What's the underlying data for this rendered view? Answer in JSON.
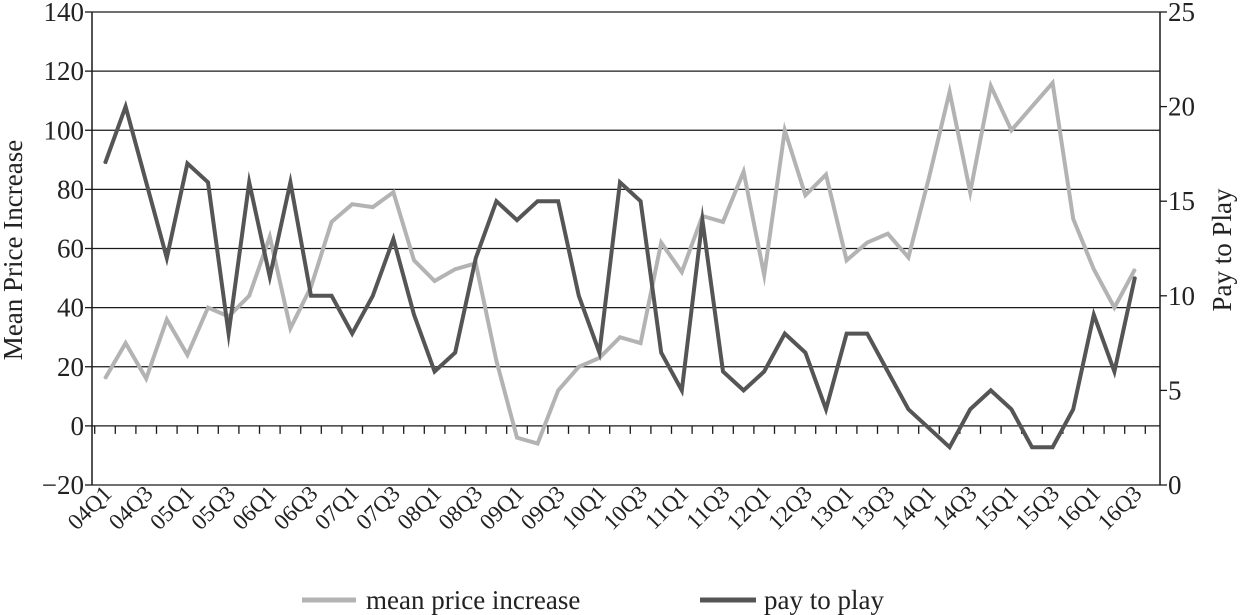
{
  "chart_data": {
    "type": "line",
    "title": "",
    "xlabel": "",
    "ylabel": "Mean Price Increase",
    "y2label": "Pay to Play",
    "ylim": [
      -20,
      140
    ],
    "y2lim": [
      0,
      25
    ],
    "yticks": [
      "140",
      "120",
      "100",
      "80",
      "60",
      "40",
      "20",
      "0",
      "−20"
    ],
    "y2ticks": [
      "25",
      "20",
      "15",
      "10",
      "5",
      "0"
    ],
    "grid": "horizontal",
    "legend_position": "bottom",
    "x_tick_labels": [
      "04Q1",
      "04Q3",
      "05Q1",
      "05Q3",
      "06Q1",
      "06Q3",
      "07Q1",
      "07Q3",
      "08Q1",
      "08Q3",
      "09Q1",
      "09Q3",
      "10Q1",
      "10Q3",
      "11Q1",
      "11Q3",
      "12Q1",
      "12Q3",
      "13Q1",
      "13Q3",
      "14Q1",
      "14Q3",
      "15Q1",
      "15Q3",
      "16Q1",
      "16Q3"
    ],
    "series": [
      {
        "name": "mean price increase",
        "axis": "left",
        "color": "#b3b3b3",
        "values": [
          16,
          28,
          16,
          36,
          24,
          40,
          37,
          44,
          64,
          33,
          47,
          69,
          75,
          74,
          79,
          56,
          49,
          53,
          55,
          22,
          -4,
          -6,
          12,
          20,
          23,
          30,
          28,
          62,
          52,
          71,
          69,
          86,
          51,
          100,
          78,
          85,
          56,
          62,
          65,
          57,
          84,
          113,
          79,
          115,
          100,
          108,
          116,
          70,
          53,
          40,
          53
        ]
      },
      {
        "name": "pay to play",
        "axis": "right",
        "color": "#555555",
        "values": [
          17,
          20,
          16,
          12,
          17,
          16,
          8,
          16,
          11,
          16,
          10,
          10,
          8,
          10,
          13,
          9,
          6,
          7,
          12,
          15,
          14,
          15,
          15,
          10,
          7,
          16,
          15,
          7,
          5,
          14,
          6,
          5,
          6,
          8,
          7,
          4,
          8,
          8,
          6,
          4,
          3,
          2,
          4,
          5,
          4,
          2,
          2,
          4,
          9,
          6,
          11
        ]
      }
    ]
  }
}
